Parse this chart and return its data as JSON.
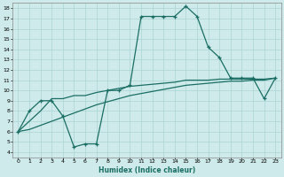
{
  "xlabel": "Humidex (Indice chaleur)",
  "xlim": [
    -0.5,
    23.5
  ],
  "ylim": [
    3.5,
    18.5
  ],
  "xticks": [
    0,
    1,
    2,
    3,
    4,
    5,
    6,
    7,
    8,
    9,
    10,
    11,
    12,
    13,
    14,
    15,
    16,
    17,
    18,
    19,
    20,
    21,
    22,
    23
  ],
  "yticks": [
    4,
    5,
    6,
    7,
    8,
    9,
    10,
    11,
    12,
    13,
    14,
    15,
    16,
    17,
    18
  ],
  "background_color": "#ceeaea",
  "grid_color": "#aad4d4",
  "line_color": "#1a6e64",
  "line1_y": [
    6.0,
    8.0,
    9.0,
    9.0,
    7.5,
    4.5,
    4.8,
    4.8,
    10.0,
    10.0,
    10.5,
    17.2,
    17.2,
    17.2,
    17.2,
    18.2,
    17.2,
    14.2,
    13.2,
    11.2,
    11.2,
    11.2,
    9.2,
    11.2
  ],
  "line2_y": [
    6.0,
    7.0,
    8.0,
    9.2,
    9.2,
    9.5,
    9.5,
    9.8,
    10.0,
    10.2,
    10.4,
    10.5,
    10.6,
    10.7,
    10.8,
    11.0,
    11.0,
    11.0,
    11.1,
    11.1,
    11.1,
    11.1,
    11.1,
    11.2
  ],
  "line3_y": [
    6.0,
    6.2,
    6.6,
    7.0,
    7.4,
    7.8,
    8.2,
    8.6,
    8.9,
    9.2,
    9.5,
    9.7,
    9.9,
    10.1,
    10.3,
    10.5,
    10.6,
    10.7,
    10.8,
    10.9,
    10.9,
    11.0,
    11.0,
    11.2
  ]
}
